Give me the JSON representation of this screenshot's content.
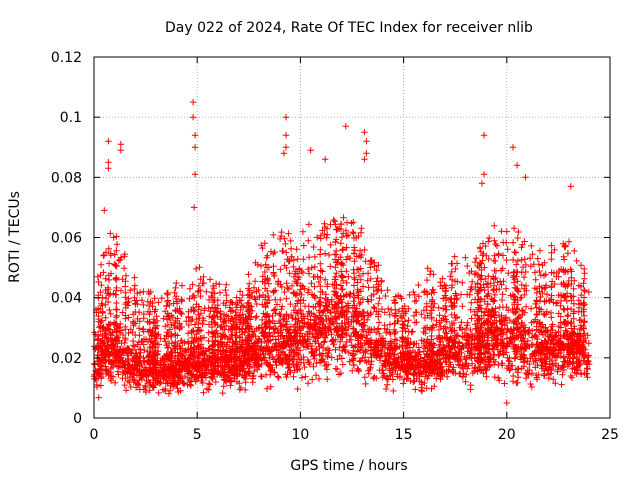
{
  "chart_data": {
    "type": "scatter",
    "title": "Day 022 of 2024, Rate Of TEC Index for receiver nlib",
    "xlabel": "GPS time / hours",
    "ylabel": "ROTI / TECUs",
    "xlim": [
      0,
      25
    ],
    "ylim": [
      0,
      0.12
    ],
    "xticks": [
      "0",
      "5",
      "10",
      "15",
      "20",
      "25"
    ],
    "yticks": [
      "0",
      "0.02",
      "0.04",
      "0.06",
      "0.08",
      "0.1",
      "0.12"
    ],
    "grid": true,
    "marker": "plus",
    "color": "#ff0000",
    "x_data_range": [
      0,
      24
    ],
    "series": [
      {
        "name": "ROTI",
        "hourly_envelope": [
          {
            "hour": 0,
            "low": 0.006,
            "typical": 0.018,
            "high": 0.045
          },
          {
            "hour": 1,
            "low": 0.005,
            "typical": 0.022,
            "high": 0.065
          },
          {
            "hour": 2,
            "low": 0.006,
            "typical": 0.016,
            "high": 0.045
          },
          {
            "hour": 3,
            "low": 0.006,
            "typical": 0.015,
            "high": 0.04
          },
          {
            "hour": 4,
            "low": 0.006,
            "typical": 0.016,
            "high": 0.045
          },
          {
            "hour": 5,
            "low": 0.006,
            "typical": 0.018,
            "high": 0.052
          },
          {
            "hour": 6,
            "low": 0.007,
            "typical": 0.017,
            "high": 0.045
          },
          {
            "hour": 7,
            "low": 0.007,
            "typical": 0.017,
            "high": 0.04
          },
          {
            "hour": 8,
            "low": 0.007,
            "typical": 0.022,
            "high": 0.06
          },
          {
            "hour": 9,
            "low": 0.008,
            "typical": 0.024,
            "high": 0.065
          },
          {
            "hour": 10,
            "low": 0.008,
            "typical": 0.025,
            "high": 0.062
          },
          {
            "hour": 11,
            "low": 0.008,
            "typical": 0.028,
            "high": 0.068
          },
          {
            "hour": 12,
            "low": 0.009,
            "typical": 0.03,
            "high": 0.07
          },
          {
            "hour": 13,
            "low": 0.008,
            "typical": 0.027,
            "high": 0.065
          },
          {
            "hour": 14,
            "low": 0.007,
            "typical": 0.019,
            "high": 0.045
          },
          {
            "hour": 15,
            "low": 0.007,
            "typical": 0.017,
            "high": 0.04
          },
          {
            "hour": 16,
            "low": 0.007,
            "typical": 0.018,
            "high": 0.05
          },
          {
            "hour": 17,
            "low": 0.008,
            "typical": 0.02,
            "high": 0.05
          },
          {
            "hour": 18,
            "low": 0.008,
            "typical": 0.022,
            "high": 0.055
          },
          {
            "hour": 19,
            "low": 0.008,
            "typical": 0.024,
            "high": 0.06
          },
          {
            "hour": 20,
            "low": 0.006,
            "typical": 0.024,
            "high": 0.065
          },
          {
            "hour": 21,
            "low": 0.008,
            "typical": 0.023,
            "high": 0.06
          },
          {
            "hour": 22,
            "low": 0.008,
            "typical": 0.021,
            "high": 0.055
          },
          {
            "hour": 23,
            "low": 0.009,
            "typical": 0.024,
            "high": 0.06
          },
          {
            "hour": 24,
            "low": 0.01,
            "typical": 0.02,
            "high": 0.045
          }
        ],
        "peaks": [
          {
            "x": 0.5,
            "y": 0.069
          },
          {
            "x": 0.7,
            "y": 0.092
          },
          {
            "x": 0.7,
            "y": 0.085
          },
          {
            "x": 0.7,
            "y": 0.083
          },
          {
            "x": 1.3,
            "y": 0.091
          },
          {
            "x": 1.3,
            "y": 0.089
          },
          {
            "x": 4.8,
            "y": 0.105
          },
          {
            "x": 4.8,
            "y": 0.1
          },
          {
            "x": 4.9,
            "y": 0.094
          },
          {
            "x": 4.9,
            "y": 0.09
          },
          {
            "x": 4.9,
            "y": 0.081
          },
          {
            "x": 4.85,
            "y": 0.07
          },
          {
            "x": 9.3,
            "y": 0.1
          },
          {
            "x": 9.3,
            "y": 0.094
          },
          {
            "x": 9.3,
            "y": 0.09
          },
          {
            "x": 9.2,
            "y": 0.088
          },
          {
            "x": 10.5,
            "y": 0.089
          },
          {
            "x": 11.2,
            "y": 0.086
          },
          {
            "x": 12.2,
            "y": 0.097
          },
          {
            "x": 13.1,
            "y": 0.095
          },
          {
            "x": 13.2,
            "y": 0.092
          },
          {
            "x": 13.2,
            "y": 0.088
          },
          {
            "x": 13.1,
            "y": 0.086
          },
          {
            "x": 18.9,
            "y": 0.094
          },
          {
            "x": 18.9,
            "y": 0.081
          },
          {
            "x": 18.8,
            "y": 0.078
          },
          {
            "x": 20.3,
            "y": 0.09
          },
          {
            "x": 20.5,
            "y": 0.084
          },
          {
            "x": 20.9,
            "y": 0.08
          },
          {
            "x": 23.1,
            "y": 0.077
          },
          {
            "x": 20.0,
            "y": 0.005
          }
        ]
      }
    ]
  }
}
